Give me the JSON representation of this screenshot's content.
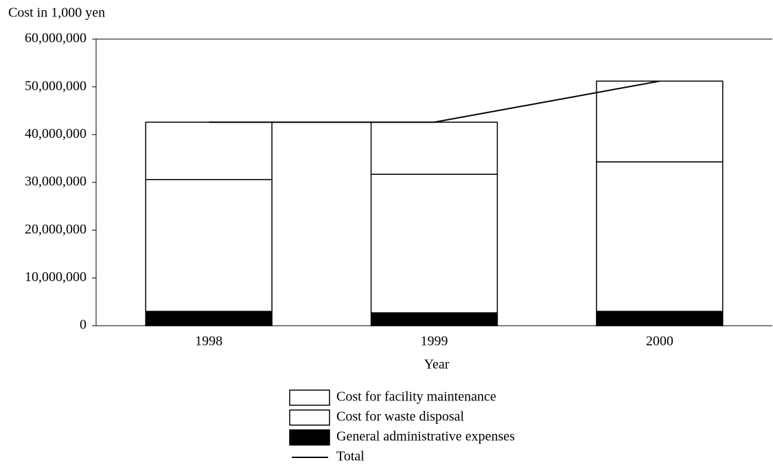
{
  "chart_data": {
    "type": "bar",
    "stacked": true,
    "y_axis_label": "Cost in 1,000 yen",
    "x_axis_label": "Year",
    "categories": [
      "1998",
      "1999",
      "2000"
    ],
    "series": [
      {
        "name": "General administrative expenses",
        "color": "#000000",
        "values": [
          3000000,
          2700000,
          3000000
        ]
      },
      {
        "name": "Cost for waste disposal",
        "color": "#ffffff",
        "values": [
          27600000,
          29000000,
          31300000
        ]
      },
      {
        "name": "Cost for facility maintenance",
        "color": "#ffffff",
        "values": [
          12000000,
          10900000,
          16900000
        ]
      },
      {
        "name": "Total",
        "type": "line",
        "color": "#000000",
        "values": [
          42600000,
          42600000,
          51200000
        ]
      }
    ],
    "legend_order": [
      2,
      1,
      0,
      3
    ],
    "ylim": [
      0,
      60000000
    ],
    "yticks": [
      0,
      {
        "value": 10000000,
        "label": "10,000,000"
      },
      {
        "value": 20000000,
        "label": "20,000,000"
      },
      {
        "value": 30000000,
        "label": "30,000,000"
      },
      {
        "value": 40000000,
        "label": "40,000,000"
      },
      {
        "value": 50000000,
        "label": "50,000,000"
      },
      {
        "value": 60000000,
        "label": "60,000,000"
      }
    ],
    "grid": false
  }
}
